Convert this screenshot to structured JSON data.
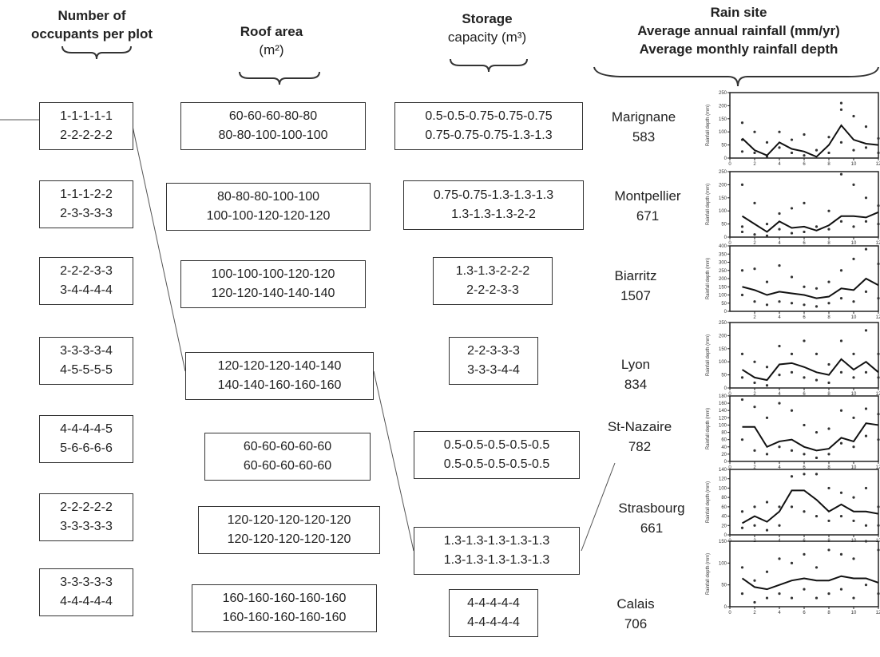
{
  "headers": {
    "occupants": [
      "Number of",
      "occupants per plot"
    ],
    "roof": [
      "Roof area",
      "(m²)"
    ],
    "storage": [
      "Storage",
      "capacity (m³)"
    ],
    "rain": [
      "Rain site",
      "Average annual rainfall (mm/yr)",
      "Average monthly rainfall depth"
    ]
  },
  "occupants": [
    [
      "1-1-1-1-1",
      "2-2-2-2-2"
    ],
    [
      "1-1-1-2-2",
      "2-3-3-3-3"
    ],
    [
      "2-2-2-3-3",
      "3-4-4-4-4"
    ],
    [
      "3-3-3-3-4",
      "4-5-5-5-5"
    ],
    [
      "4-4-4-4-5",
      "5-6-6-6-6"
    ],
    [
      "2-2-2-2-2",
      "3-3-3-3-3"
    ],
    [
      "3-3-3-3-3",
      "4-4-4-4-4"
    ]
  ],
  "roof": [
    [
      "60-60-60-80-80",
      "80-80-100-100-100"
    ],
    [
      "80-80-80-100-100",
      "100-100-120-120-120"
    ],
    [
      "100-100-100-120-120",
      "120-120-140-140-140"
    ],
    [
      "120-120-120-140-140",
      "140-140-160-160-160"
    ],
    [
      "60-60-60-60-60",
      "60-60-60-60-60"
    ],
    [
      "120-120-120-120-120",
      "120-120-120-120-120"
    ],
    [
      "160-160-160-160-160",
      "160-160-160-160-160"
    ]
  ],
  "storage": [
    [
      "0.5-0.5-0.75-0.75-0.75",
      "0.75-0.75-0.75-1.3-1.3"
    ],
    [
      "0.75-0.75-1.3-1.3-1.3",
      "1.3-1.3-1.3-2-2"
    ],
    [
      "1.3-1.3-2-2-2",
      "2-2-2-3-3"
    ],
    [
      "2-2-3-3-3",
      "3-3-3-4-4"
    ],
    [
      "0.5-0.5-0.5-0.5-0.5",
      "0.5-0.5-0.5-0.5-0.5"
    ],
    [
      "1.3-1.3-1.3-1.3-1.3",
      "1.3-1.3-1.3-1.3-1.3"
    ],
    [
      "4-4-4-4-4",
      "4-4-4-4-4"
    ]
  ],
  "sites": [
    {
      "name": "Marignane",
      "rainfall": "583"
    },
    {
      "name": "Montpellier",
      "rainfall": "671"
    },
    {
      "name": "Biarritz",
      "rainfall": "1507"
    },
    {
      "name": "Lyon",
      "rainfall": "834"
    },
    {
      "name": "St-Nazaire",
      "rainfall": "782"
    },
    {
      "name": "Strasbourg",
      "rainfall": "661"
    },
    {
      "name": "Calais",
      "rainfall": "706"
    }
  ],
  "chart_data": [
    {
      "type": "line",
      "site": "Marignane",
      "ylabel": "Rainfall depth (mm)",
      "ylim": [
        0,
        250
      ],
      "yticks": [
        0,
        50,
        100,
        150,
        200,
        250
      ],
      "xlim": [
        0,
        12
      ],
      "xticks": [
        0,
        2,
        4,
        6,
        8,
        10,
        12
      ],
      "x": [
        1,
        2,
        3,
        4,
        5,
        6,
        7,
        8,
        9,
        10,
        11,
        12
      ],
      "mean": [
        75,
        30,
        10,
        60,
        35,
        25,
        5,
        50,
        125,
        70,
        55,
        50
      ],
      "scatter": [
        [
          1,
          135
        ],
        [
          1,
          70
        ],
        [
          1,
          25
        ],
        [
          2,
          100
        ],
        [
          2,
          20
        ],
        [
          3,
          60
        ],
        [
          3,
          5
        ],
        [
          4,
          100
        ],
        [
          4,
          40
        ],
        [
          5,
          70
        ],
        [
          5,
          20
        ],
        [
          6,
          90
        ],
        [
          6,
          10
        ],
        [
          7,
          30
        ],
        [
          8,
          80
        ],
        [
          8,
          20
        ],
        [
          9,
          210
        ],
        [
          9,
          185
        ],
        [
          9,
          60
        ],
        [
          10,
          160
        ],
        [
          10,
          30
        ],
        [
          11,
          120
        ],
        [
          11,
          40
        ],
        [
          12,
          75
        ],
        [
          12,
          20
        ]
      ]
    },
    {
      "type": "line",
      "site": "Montpellier",
      "ylabel": "Rainfall depth (mm)",
      "ylim": [
        0,
        250
      ],
      "yticks": [
        0,
        50,
        100,
        150,
        200,
        250
      ],
      "xlim": [
        0,
        12
      ],
      "xticks": [
        0,
        2,
        4,
        6,
        8,
        10,
        12
      ],
      "x": [
        1,
        2,
        3,
        4,
        5,
        6,
        7,
        8,
        9,
        10,
        11,
        12
      ],
      "mean": [
        80,
        50,
        20,
        60,
        35,
        40,
        25,
        45,
        80,
        80,
        75,
        95
      ],
      "scatter": [
        [
          1,
          200
        ],
        [
          1,
          40
        ],
        [
          1,
          20
        ],
        [
          2,
          130
        ],
        [
          2,
          10
        ],
        [
          3,
          50
        ],
        [
          3,
          5
        ],
        [
          4,
          90
        ],
        [
          4,
          30
        ],
        [
          5,
          110
        ],
        [
          5,
          15
        ],
        [
          6,
          130
        ],
        [
          6,
          20
        ],
        [
          7,
          40
        ],
        [
          8,
          100
        ],
        [
          8,
          30
        ],
        [
          9,
          240
        ],
        [
          9,
          60
        ],
        [
          10,
          200
        ],
        [
          10,
          40
        ],
        [
          11,
          150
        ],
        [
          11,
          60
        ],
        [
          12,
          120
        ],
        [
          12,
          50
        ]
      ]
    },
    {
      "type": "line",
      "site": "Biarritz",
      "ylabel": "Rainfall depth (mm)",
      "ylim": [
        0,
        400
      ],
      "yticks": [
        0,
        50,
        100,
        150,
        200,
        250,
        300,
        350,
        400
      ],
      "xlim": [
        0,
        12
      ],
      "xticks": [
        2,
        4,
        6,
        8,
        10,
        12
      ],
      "x": [
        1,
        2,
        3,
        4,
        5,
        6,
        7,
        8,
        9,
        10,
        11,
        12
      ],
      "mean": [
        150,
        130,
        100,
        120,
        110,
        100,
        80,
        90,
        140,
        130,
        200,
        160
      ],
      "scatter": [
        [
          1,
          250
        ],
        [
          1,
          100
        ],
        [
          2,
          260
        ],
        [
          2,
          60
        ],
        [
          3,
          180
        ],
        [
          3,
          40
        ],
        [
          4,
          280
        ],
        [
          4,
          60
        ],
        [
          5,
          210
        ],
        [
          5,
          50
        ],
        [
          6,
          150
        ],
        [
          6,
          40
        ],
        [
          7,
          140
        ],
        [
          7,
          30
        ],
        [
          8,
          180
        ],
        [
          8,
          50
        ],
        [
          9,
          250
        ],
        [
          9,
          80
        ],
        [
          10,
          320
        ],
        [
          10,
          60
        ],
        [
          11,
          380
        ],
        [
          11,
          120
        ],
        [
          12,
          290
        ],
        [
          12,
          80
        ]
      ]
    },
    {
      "type": "line",
      "site": "Lyon",
      "ylabel": "Rainfall depth (mm)",
      "ylim": [
        0,
        250
      ],
      "yticks": [
        0,
        50,
        100,
        150,
        200,
        250
      ],
      "xlim": [
        0,
        12
      ],
      "xticks": [
        0,
        2,
        4,
        6,
        8,
        10,
        12
      ],
      "x": [
        1,
        2,
        3,
        4,
        5,
        6,
        7,
        8,
        9,
        10,
        11,
        12
      ],
      "mean": [
        70,
        40,
        30,
        90,
        95,
        80,
        60,
        50,
        110,
        70,
        100,
        60
      ],
      "scatter": [
        [
          1,
          130
        ],
        [
          1,
          40
        ],
        [
          2,
          100
        ],
        [
          2,
          20
        ],
        [
          3,
          80
        ],
        [
          3,
          10
        ],
        [
          4,
          160
        ],
        [
          4,
          50
        ],
        [
          5,
          130
        ],
        [
          5,
          60
        ],
        [
          6,
          180
        ],
        [
          6,
          40
        ],
        [
          7,
          130
        ],
        [
          7,
          30
        ],
        [
          8,
          90
        ],
        [
          8,
          20
        ],
        [
          9,
          180
        ],
        [
          9,
          60
        ],
        [
          10,
          130
        ],
        [
          10,
          40
        ],
        [
          11,
          220
        ],
        [
          11,
          60
        ],
        [
          12,
          130
        ],
        [
          12,
          40
        ]
      ]
    },
    {
      "type": "line",
      "site": "St-Nazaire",
      "ylabel": "Rainfall depth (mm)",
      "ylim": [
        0,
        180
      ],
      "yticks": [
        0,
        20,
        40,
        60,
        80,
        100,
        120,
        140,
        160,
        180
      ],
      "xlim": [
        0,
        12
      ],
      "xticks": [
        0,
        2,
        4,
        6,
        8,
        10,
        12
      ],
      "x": [
        1,
        2,
        3,
        4,
        5,
        6,
        7,
        8,
        9,
        10,
        11,
        12
      ],
      "mean": [
        95,
        95,
        40,
        55,
        60,
        40,
        30,
        35,
        65,
        55,
        105,
        100
      ],
      "scatter": [
        [
          1,
          170
        ],
        [
          1,
          60
        ],
        [
          2,
          150
        ],
        [
          2,
          30
        ],
        [
          3,
          120
        ],
        [
          3,
          20
        ],
        [
          4,
          160
        ],
        [
          4,
          40
        ],
        [
          5,
          140
        ],
        [
          5,
          30
        ],
        [
          6,
          100
        ],
        [
          6,
          20
        ],
        [
          7,
          80
        ],
        [
          7,
          10
        ],
        [
          8,
          90
        ],
        [
          8,
          20
        ],
        [
          9,
          140
        ],
        [
          9,
          50
        ],
        [
          10,
          120
        ],
        [
          10,
          40
        ],
        [
          11,
          145
        ],
        [
          11,
          70
        ],
        [
          12,
          130
        ],
        [
          12,
          60
        ]
      ]
    },
    {
      "type": "line",
      "site": "Strasbourg",
      "ylabel": "Rainfall depth (mm)",
      "ylim": [
        0,
        140
      ],
      "yticks": [
        0,
        20,
        40,
        60,
        80,
        100,
        120,
        140
      ],
      "xlim": [
        0,
        12
      ],
      "xticks": [
        0,
        2,
        4,
        6,
        8,
        10,
        12
      ],
      "x": [
        1,
        2,
        3,
        4,
        5,
        6,
        7,
        8,
        9,
        10,
        11,
        12
      ],
      "mean": [
        25,
        40,
        28,
        50,
        95,
        95,
        75,
        50,
        65,
        50,
        50,
        45
      ],
      "scatter": [
        [
          1,
          50
        ],
        [
          1,
          15
        ],
        [
          2,
          60
        ],
        [
          2,
          20
        ],
        [
          3,
          70
        ],
        [
          3,
          10
        ],
        [
          4,
          60
        ],
        [
          4,
          20
        ],
        [
          5,
          125
        ],
        [
          5,
          60
        ],
        [
          6,
          130
        ],
        [
          6,
          50
        ],
        [
          7,
          130
        ],
        [
          7,
          40
        ],
        [
          8,
          100
        ],
        [
          8,
          30
        ],
        [
          9,
          90
        ],
        [
          9,
          40
        ],
        [
          10,
          80
        ],
        [
          10,
          30
        ],
        [
          11,
          100
        ],
        [
          11,
          20
        ],
        [
          12,
          60
        ],
        [
          12,
          20
        ]
      ]
    },
    {
      "type": "line",
      "site": "Calais",
      "ylabel": "Rainfall depth (mm)",
      "ylim": [
        0,
        150
      ],
      "yticks": [
        0,
        50,
        100,
        150
      ],
      "xlim": [
        0,
        12
      ],
      "xticks": [
        0,
        2,
        4,
        6,
        8,
        10,
        12
      ],
      "x": [
        1,
        2,
        3,
        4,
        5,
        6,
        7,
        8,
        9,
        10,
        11,
        12
      ],
      "mean": [
        65,
        45,
        40,
        50,
        60,
        65,
        60,
        60,
        70,
        65,
        65,
        55
      ],
      "scatter": [
        [
          1,
          90
        ],
        [
          1,
          30
        ],
        [
          2,
          60
        ],
        [
          2,
          10
        ],
        [
          3,
          80
        ],
        [
          3,
          20
        ],
        [
          4,
          110
        ],
        [
          4,
          30
        ],
        [
          5,
          100
        ],
        [
          5,
          20
        ],
        [
          6,
          120
        ],
        [
          6,
          40
        ],
        [
          7,
          90
        ],
        [
          7,
          20
        ],
        [
          8,
          130
        ],
        [
          8,
          30
        ],
        [
          9,
          120
        ],
        [
          9,
          40
        ],
        [
          10,
          110
        ],
        [
          10,
          20
        ],
        [
          11,
          150
        ],
        [
          11,
          50
        ],
        [
          12,
          130
        ],
        [
          12,
          30
        ]
      ]
    }
  ]
}
